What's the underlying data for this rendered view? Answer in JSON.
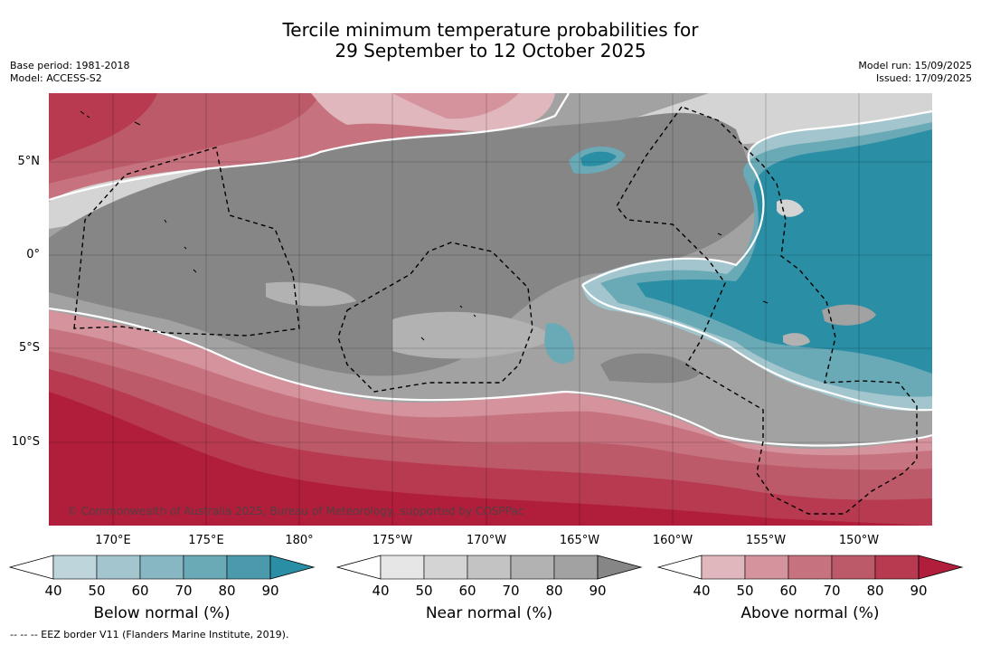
{
  "title": {
    "line1": "Tercile minimum temperature probabilities for",
    "line2": "29 September to 12 October 2025"
  },
  "meta_left": {
    "base_period": "Base period: 1981-2018",
    "model": "Model: ACCESS-S2"
  },
  "meta_right": {
    "model_run": "Model run: 15/09/2025",
    "issued": "Issued: 17/09/2025"
  },
  "map": {
    "latitude_labels": [
      "5°N",
      "0°",
      "5°S",
      "10°S"
    ],
    "longitude_labels": [
      "170°E",
      "175°E",
      "180°",
      "175°W",
      "170°W",
      "165°W",
      "160°W",
      "155°W",
      "150°W"
    ],
    "copyright": "© Commonwealth of Australia 2025, Bureau of Meteorology, supported by COSPPac"
  },
  "colorbars": [
    {
      "title": "Below normal (%)",
      "ticks": [
        "40",
        "50",
        "60",
        "70",
        "80",
        "90"
      ],
      "colors": [
        "#ffffff",
        "#bdd5db",
        "#a3c6ce",
        "#87b7c2",
        "#6aa9b6",
        "#4a9aab",
        "#2a8ea5"
      ]
    },
    {
      "title": "Near normal (%)",
      "ticks": [
        "40",
        "50",
        "60",
        "70",
        "80",
        "90"
      ],
      "colors": [
        "#ffffff",
        "#e6e6e6",
        "#d4d4d4",
        "#c3c3c3",
        "#b2b2b2",
        "#a2a2a2",
        "#868686"
      ]
    },
    {
      "title": "Above normal (%)",
      "ticks": [
        "40",
        "50",
        "60",
        "70",
        "80",
        "90"
      ],
      "colors": [
        "#ffffff",
        "#e0b7bd",
        "#d4939d",
        "#c7737f",
        "#bd5a6a",
        "#b73a51",
        "#b01e3b"
      ]
    }
  ],
  "footnote": "--  --  -- EEZ border V11 (Flanders Marine Institute, 2019)."
}
